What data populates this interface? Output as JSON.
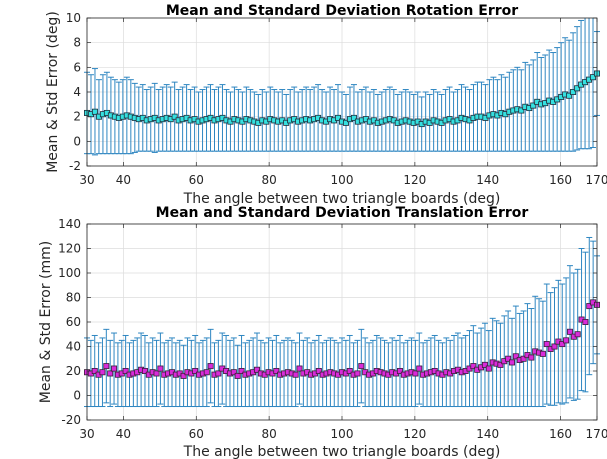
{
  "chart_data": [
    {
      "type": "errorbar",
      "title": "Mean and Standard Deviation Rotation Error",
      "xlabel": "The angle between two triangle boards (deg)",
      "ylabel": "Mean & Std Error (deg)",
      "xlim": [
        30,
        170
      ],
      "ylim": [
        -2,
        10
      ],
      "xticks": [
        30,
        40,
        60,
        80,
        100,
        120,
        140,
        160,
        170
      ],
      "yticks": [
        -2,
        0,
        2,
        4,
        6,
        8,
        10
      ],
      "grid": true,
      "colors": {
        "error_bar": "#2e86c1",
        "marker_fill": "#35e0e0",
        "marker_edge": "#1f2d3a"
      },
      "series": [
        {
          "x_start": 30,
          "x_end": 170,
          "mean": [
            2.3,
            2.2,
            2.4,
            2.0,
            2.2,
            2.3,
            2.1,
            2.0,
            1.9,
            2.0,
            2.1,
            2.0,
            1.9,
            1.8,
            1.9,
            1.7,
            1.8,
            1.9,
            1.7,
            1.8,
            1.9,
            1.8,
            2.0,
            1.7,
            1.8,
            1.9,
            1.7,
            1.8,
            1.6,
            1.7,
            1.8,
            1.9,
            1.7,
            1.8,
            1.9,
            1.7,
            1.6,
            1.8,
            1.7,
            1.6,
            1.8,
            1.7,
            1.6,
            1.5,
            1.7,
            1.6,
            1.8,
            1.7,
            1.6,
            1.7,
            1.5,
            1.7,
            1.8,
            1.6,
            1.7,
            1.8,
            1.7,
            1.8,
            1.9,
            1.7,
            1.6,
            1.8,
            1.7,
            1.9,
            1.6,
            1.5,
            1.8,
            1.9,
            1.6,
            1.7,
            1.8,
            1.6,
            1.7,
            1.5,
            1.6,
            1.7,
            1.8,
            1.7,
            1.5,
            1.6,
            1.7,
            1.6,
            1.5,
            1.6,
            1.4,
            1.6,
            1.5,
            1.7,
            1.6,
            1.5,
            1.7,
            1.8,
            1.6,
            1.7,
            1.9,
            1.8,
            1.7,
            1.9,
            2.0,
            2.0,
            1.9,
            2.1,
            2.2,
            2.1,
            2.3,
            2.2,
            2.4,
            2.5,
            2.6,
            2.5,
            2.8,
            2.7,
            2.9,
            3.2,
            3.0,
            3.1,
            3.3,
            3.2,
            3.4,
            3.6,
            3.8,
            3.7,
            4.0,
            4.3,
            4.6,
            4.8,
            5.0,
            5.2,
            5.5
          ],
          "std": [
            3.3,
            3.2,
            3.5,
            3.0,
            3.2,
            3.3,
            3.1,
            3.0,
            2.9,
            3.0,
            3.1,
            3.0,
            2.8,
            2.6,
            2.7,
            2.5,
            2.6,
            2.8,
            2.5,
            2.6,
            2.7,
            2.6,
            2.8,
            2.5,
            2.6,
            2.7,
            2.5,
            2.6,
            2.4,
            2.5,
            2.6,
            2.7,
            2.5,
            2.6,
            2.7,
            2.5,
            2.4,
            2.6,
            2.5,
            2.4,
            2.6,
            2.5,
            2.4,
            2.3,
            2.5,
            2.4,
            2.6,
            2.5,
            2.4,
            2.5,
            2.3,
            2.5,
            2.6,
            2.4,
            2.5,
            2.6,
            2.5,
            2.6,
            2.7,
            2.5,
            2.4,
            2.6,
            2.5,
            2.7,
            2.4,
            2.3,
            2.6,
            2.7,
            2.4,
            2.5,
            2.6,
            2.4,
            2.5,
            2.3,
            2.4,
            2.5,
            2.6,
            2.5,
            2.3,
            2.4,
            2.5,
            2.4,
            2.3,
            2.4,
            2.2,
            2.4,
            2.3,
            2.5,
            2.4,
            2.3,
            2.5,
            2.6,
            2.4,
            2.5,
            2.7,
            2.6,
            2.5,
            2.7,
            2.8,
            2.8,
            2.7,
            2.9,
            3.0,
            2.9,
            3.1,
            3.0,
            3.2,
            3.3,
            3.4,
            3.3,
            3.6,
            3.5,
            3.7,
            4.0,
            3.8,
            3.9,
            4.1,
            4.0,
            4.2,
            4.4,
            4.6,
            4.5,
            4.8,
            5.0,
            5.2,
            5.4,
            5.6,
            5.7,
            3.4
          ]
        }
      ]
    },
    {
      "type": "errorbar",
      "title": "Mean and Standard Deviation Translation Error",
      "xlabel": "The angle between two triangle boards (deg)",
      "ylabel": "Mean & Std Error (mm)",
      "xlim": [
        30,
        170
      ],
      "ylim": [
        -20,
        140
      ],
      "xticks": [
        30,
        40,
        60,
        80,
        100,
        120,
        140,
        160,
        170
      ],
      "yticks": [
        -20,
        0,
        20,
        40,
        60,
        80,
        100,
        120,
        140
      ],
      "grid": true,
      "colors": {
        "error_bar": "#2e86c1",
        "marker_fill": "#d92bd9",
        "marker_edge": "#3a1f3a"
      },
      "series": [
        {
          "x_start": 30,
          "x_end": 170,
          "mean": [
            19,
            18,
            20,
            17,
            19,
            24,
            18,
            22,
            17,
            18,
            20,
            17,
            18,
            19,
            21,
            20,
            17,
            19,
            18,
            22,
            17,
            18,
            19,
            17,
            18,
            16,
            19,
            18,
            20,
            17,
            18,
            19,
            24,
            17,
            18,
            22,
            20,
            18,
            19,
            16,
            20,
            17,
            18,
            19,
            21,
            18,
            17,
            19,
            18,
            20,
            17,
            18,
            19,
            18,
            17,
            22,
            18,
            19,
            17,
            18,
            20,
            17,
            18,
            19,
            18,
            17,
            19,
            18,
            20,
            17,
            18,
            24,
            19,
            17,
            18,
            20,
            19,
            18,
            17,
            19,
            18,
            20,
            17,
            18,
            19,
            18,
            22,
            17,
            18,
            19,
            20,
            18,
            17,
            19,
            18,
            20,
            21,
            19,
            20,
            22,
            24,
            21,
            23,
            25,
            22,
            27,
            26,
            25,
            28,
            30,
            27,
            32,
            29,
            30,
            33,
            31,
            36,
            35,
            34,
            42,
            38,
            40,
            44,
            42,
            45,
            52,
            48,
            50,
            62,
            60,
            73,
            76,
            74
          ],
          "std": [
            28,
            27,
            29,
            26,
            28,
            30,
            27,
            29,
            26,
            27,
            29,
            26,
            27,
            28,
            30,
            29,
            26,
            28,
            27,
            29,
            26,
            27,
            28,
            26,
            27,
            25,
            28,
            27,
            29,
            26,
            27,
            28,
            30,
            26,
            27,
            29,
            29,
            27,
            28,
            25,
            29,
            26,
            27,
            28,
            30,
            27,
            26,
            28,
            27,
            29,
            26,
            27,
            28,
            27,
            26,
            29,
            27,
            28,
            26,
            27,
            29,
            26,
            27,
            28,
            27,
            26,
            28,
            27,
            29,
            26,
            27,
            30,
            28,
            26,
            27,
            29,
            28,
            27,
            26,
            28,
            27,
            29,
            26,
            27,
            28,
            27,
            29,
            26,
            27,
            28,
            29,
            27,
            26,
            28,
            27,
            29,
            30,
            28,
            29,
            31,
            33,
            30,
            32,
            34,
            31,
            36,
            35,
            34,
            37,
            39,
            36,
            41,
            38,
            39,
            42,
            40,
            45,
            44,
            43,
            49,
            46,
            48,
            50,
            49,
            51,
            54,
            52,
            53,
            58,
            57,
            56,
            50,
            40
          ]
        }
      ]
    }
  ]
}
